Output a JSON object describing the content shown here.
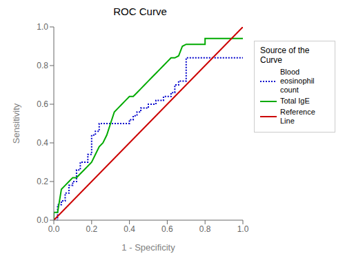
{
  "chart_data": {
    "type": "line",
    "title": "ROC Curve",
    "x_label": "1 - Specificity",
    "y_label": "Sensitivity",
    "legend_title": "Source of the Curve",
    "legend": "upper right",
    "grid": false,
    "xlim": [
      0.0,
      1.0
    ],
    "ylim": [
      0.0,
      1.0
    ],
    "xticks": [
      {
        "value": 0.0,
        "label": "0.0"
      },
      0.2,
      0.4,
      0.6,
      0.8,
      {
        "value": 1.0,
        "label": "1.0"
      }
    ],
    "yticks": [
      {
        "value": 0.0,
        "label": "0.0"
      },
      0.2,
      0.4,
      0.6,
      0.8,
      {
        "value": 1.0,
        "label": "1.0"
      }
    ],
    "series": [
      {
        "name": "Blood eosinophil\ncount",
        "color": "#0000cc",
        "line_style": "dotted",
        "x": [
          0.0,
          0.0,
          0.02,
          0.02,
          0.04,
          0.04,
          0.06,
          0.06,
          0.08,
          0.08,
          0.1,
          0.1,
          0.12,
          0.12,
          0.14,
          0.14,
          0.16,
          0.16,
          0.18,
          0.18,
          0.2,
          0.2,
          0.22,
          0.22,
          0.24,
          0.24,
          0.26,
          0.26,
          0.28,
          0.28,
          0.3,
          0.3,
          0.32,
          0.32,
          0.34,
          0.34,
          0.36,
          0.36,
          0.38,
          0.38,
          0.4,
          0.4,
          0.42,
          0.42,
          0.44,
          0.44,
          0.46,
          0.46,
          0.48,
          0.48,
          0.5,
          0.5,
          0.52,
          0.52,
          0.54,
          0.54,
          0.56,
          0.56,
          0.58,
          0.58,
          0.6,
          0.6,
          0.62,
          0.62,
          0.64,
          0.64,
          0.66,
          0.66,
          0.68,
          0.68,
          0.7,
          0.7,
          0.8,
          0.8,
          0.9,
          0.9,
          1.0
        ],
        "values": [
          0.0,
          0.0,
          0.0,
          0.08,
          0.08,
          0.1,
          0.1,
          0.14,
          0.14,
          0.18,
          0.18,
          0.2,
          0.2,
          0.26,
          0.26,
          0.3,
          0.3,
          0.3,
          0.3,
          0.34,
          0.34,
          0.44,
          0.44,
          0.46,
          0.46,
          0.5,
          0.5,
          0.5,
          0.5,
          0.5,
          0.5,
          0.5,
          0.5,
          0.5,
          0.5,
          0.5,
          0.5,
          0.5,
          0.5,
          0.5,
          0.5,
          0.52,
          0.52,
          0.54,
          0.54,
          0.56,
          0.56,
          0.58,
          0.58,
          0.58,
          0.58,
          0.6,
          0.6,
          0.6,
          0.6,
          0.62,
          0.62,
          0.62,
          0.62,
          0.64,
          0.64,
          0.64,
          0.64,
          0.66,
          0.66,
          0.7,
          0.7,
          0.72,
          0.72,
          0.72,
          0.72,
          0.84,
          0.84,
          0.84,
          0.84,
          0.84,
          0.84
        ]
      },
      {
        "name": "Total IgE",
        "color": "#00aa00",
        "line_style": "solid",
        "x": [
          0.0,
          0.0,
          0.0,
          0.02,
          0.02,
          0.04,
          0.04,
          0.06,
          0.06,
          0.08,
          0.08,
          0.1,
          0.1,
          0.12,
          0.12,
          0.14,
          0.14,
          0.16,
          0.16,
          0.18,
          0.18,
          0.2,
          0.2,
          0.22,
          0.22,
          0.24,
          0.24,
          0.26,
          0.26,
          0.28,
          0.28,
          0.3,
          0.3,
          0.32,
          0.32,
          0.34,
          0.34,
          0.36,
          0.36,
          0.38,
          0.38,
          0.4,
          0.4,
          0.42,
          0.42,
          0.44,
          0.44,
          0.46,
          0.46,
          0.48,
          0.48,
          0.5,
          0.5,
          0.52,
          0.52,
          0.54,
          0.54,
          0.56,
          0.56,
          0.58,
          0.58,
          0.6,
          0.6,
          0.62,
          0.62,
          0.64,
          0.64,
          0.66,
          0.66,
          0.68,
          0.68,
          0.7,
          0.7,
          0.8,
          0.8,
          0.9,
          0.9,
          1.0
        ],
        "values": [
          0.0,
          0.04,
          0.04,
          0.04,
          0.04,
          0.16,
          0.16,
          0.18,
          0.18,
          0.2,
          0.2,
          0.22,
          0.22,
          0.22,
          0.22,
          0.24,
          0.24,
          0.26,
          0.26,
          0.28,
          0.28,
          0.3,
          0.3,
          0.34,
          0.34,
          0.38,
          0.38,
          0.4,
          0.4,
          0.44,
          0.44,
          0.5,
          0.5,
          0.56,
          0.56,
          0.58,
          0.58,
          0.6,
          0.6,
          0.62,
          0.62,
          0.64,
          0.64,
          0.64,
          0.64,
          0.66,
          0.66,
          0.68,
          0.68,
          0.7,
          0.7,
          0.72,
          0.72,
          0.74,
          0.74,
          0.76,
          0.76,
          0.78,
          0.78,
          0.8,
          0.8,
          0.82,
          0.82,
          0.84,
          0.84,
          0.84,
          0.84,
          0.85,
          0.85,
          0.9,
          0.9,
          0.91,
          0.91,
          0.91,
          0.94,
          0.94,
          0.94,
          0.94
        ]
      },
      {
        "name": "Reference Line",
        "color": "#cc0000",
        "line_style": "solid",
        "x": [
          0,
          1
        ],
        "values": [
          0,
          1
        ]
      }
    ]
  }
}
